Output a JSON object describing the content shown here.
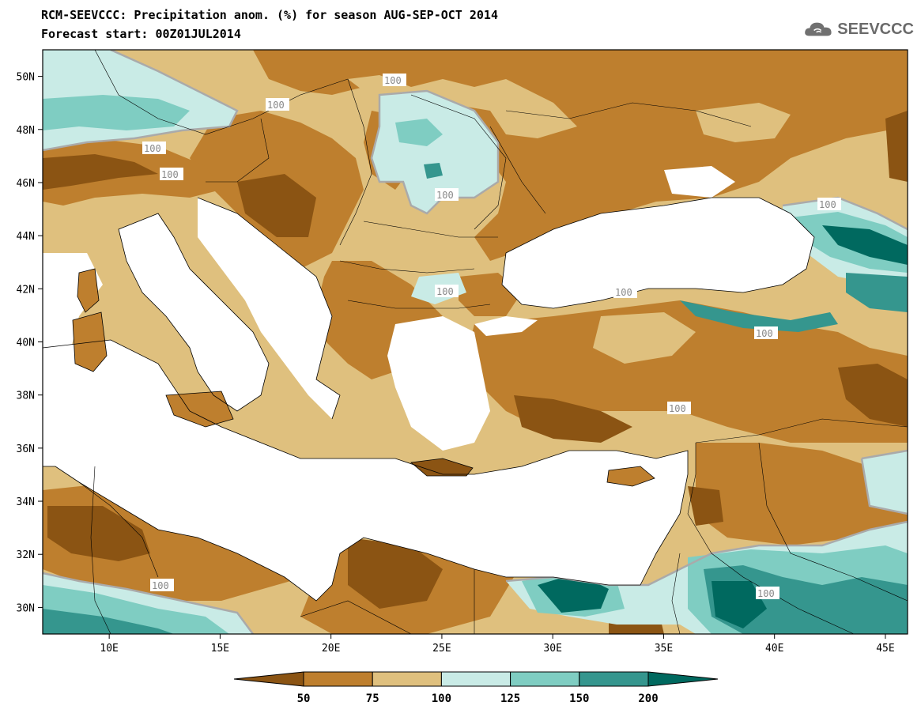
{
  "header": {
    "title_line1": "RCM-SEEVCCC: Precipitation anom. (%) for season AUG-SEP-OCT 2014",
    "title_line2": "Forecast start: 00Z01JUL2014",
    "logo_text": "SEEVCCC"
  },
  "map": {
    "variable": "Precipitation anomaly",
    "units": "%",
    "season": "AUG-SEP-OCT 2014",
    "lon_range": [
      7,
      46
    ],
    "lat_range": [
      29,
      51
    ],
    "lat_labels": [
      "50N",
      "48N",
      "46N",
      "44N",
      "42N",
      "40N",
      "38N",
      "36N",
      "34N",
      "32N",
      "30N"
    ],
    "lon_labels": [
      "10E",
      "15E",
      "20E",
      "25E",
      "30E",
      "35E",
      "40E",
      "45E"
    ],
    "contour_labels": [
      "100",
      "100",
      "100",
      "100",
      "100",
      "100",
      "100",
      "100",
      "100",
      "100",
      "100",
      "100"
    ]
  },
  "colorbar": {
    "levels": [
      "50",
      "75",
      "100",
      "125",
      "150",
      "200"
    ],
    "colors": [
      "#8b5413",
      "#be7f2e",
      "#dfc07e",
      "#c9ebe6",
      "#7fcdc2",
      "#35968e",
      "#00695f"
    ]
  },
  "colors": {
    "below_50": "#8b5413",
    "50_75": "#be7f2e",
    "75_100": "#dfc07e",
    "100_125": "#c9ebe6",
    "125_150": "#7fcdc2",
    "150_200": "#35968e",
    "above_200": "#00695f",
    "contour_line": "#aaaaaa",
    "sea": "#ffffff"
  }
}
